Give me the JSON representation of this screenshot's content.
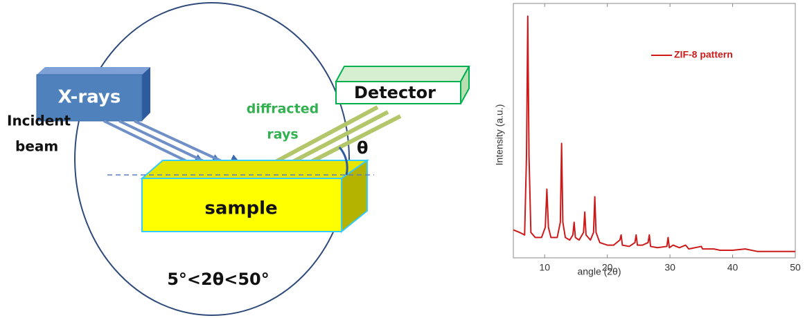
{
  "diagram": {
    "source_label": "X-rays",
    "source_caption": [
      "Incident",
      "beam"
    ],
    "detector_label": "Detector",
    "diffracted_label": [
      "diffracted",
      "rays"
    ],
    "angle_label": "θ",
    "sample_label": "sample",
    "range_label": "5°<2θ<50°"
  },
  "chart_data": {
    "type": "line",
    "x_label": "angle (2θ)",
    "y_label": "Intensity (a.u.)",
    "x": [
      5,
      6,
      6.8,
      7.1,
      7.3,
      7.5,
      7.8,
      8.5,
      9.5,
      10.1,
      10.35,
      10.6,
      11,
      12,
      12.5,
      12.7,
      12.9,
      13.3,
      14,
      14.5,
      14.7,
      14.9,
      15.5,
      16.2,
      16.4,
      16.6,
      17.3,
      17.8,
      18.0,
      18.2,
      18.8,
      20,
      21,
      22,
      22.2,
      22.4,
      23.5,
      24.4,
      24.6,
      24.8,
      25.6,
      26.5,
      26.7,
      26.9,
      28,
      29.5,
      29.7,
      29.9,
      30.5,
      31,
      31.5,
      32.5,
      33,
      35,
      35.2,
      37,
      38,
      40,
      42,
      44,
      46,
      48,
      50
    ],
    "series": [
      {
        "name": "ZIF-8 pattern",
        "color": "#cc1a1a",
        "values": [
          11,
          10,
          9,
          40,
          95,
          40,
          10,
          8,
          8,
          12,
          27,
          12,
          8,
          8,
          14,
          45,
          14,
          8,
          7,
          9,
          14,
          8,
          7,
          10,
          18,
          9,
          7,
          10,
          24,
          10,
          6,
          5,
          5,
          7,
          9,
          5,
          4.5,
          6,
          9,
          5,
          5,
          6,
          9,
          4.5,
          4,
          4.5,
          8,
          4,
          5,
          4.5,
          4,
          5,
          3.5,
          4.5,
          3.5,
          3.5,
          3,
          3,
          3.5,
          2.5,
          2.5,
          2.5,
          2.5
        ]
      }
    ],
    "xlim": [
      5,
      50
    ],
    "xticks": [
      10,
      20,
      30,
      40,
      50
    ],
    "ylim": [
      0,
      100
    ],
    "legend": "top-right"
  }
}
